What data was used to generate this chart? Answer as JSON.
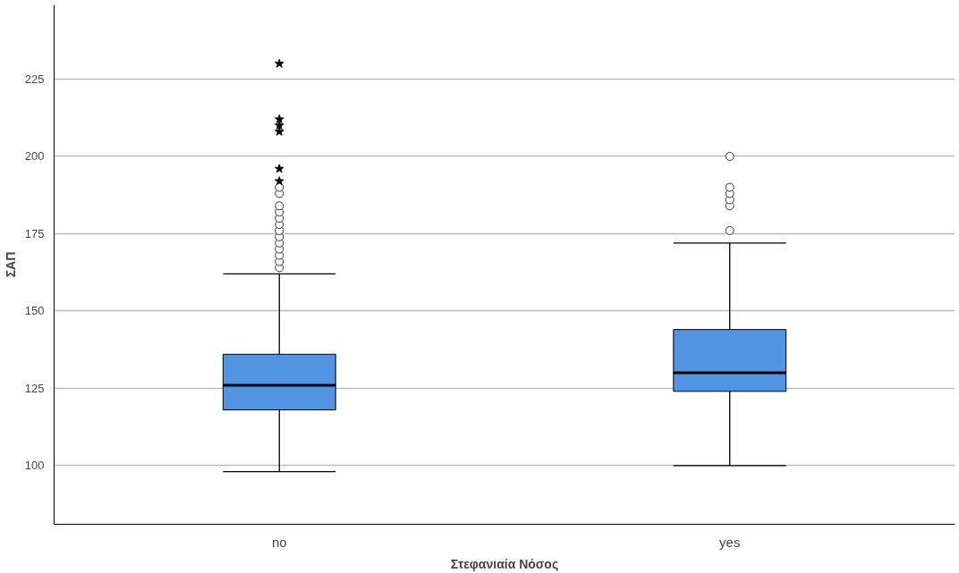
{
  "chart_data": {
    "type": "box",
    "xlabel": "Στεφανιαία Νόσος",
    "ylabel": "ΣΑΠ",
    "categories": [
      "no",
      "yes"
    ],
    "ylim": [
      81,
      249
    ],
    "yticks": [
      100,
      125,
      150,
      175,
      200,
      225
    ],
    "grid": "y",
    "series": [
      {
        "color": "#5294e2",
        "boxes": [
          {
            "low": 98,
            "q1": 118,
            "median": 126,
            "q3": 136,
            "high": 162,
            "outliers": [
              164,
              166,
              168,
              170,
              172,
              174,
              176,
              178,
              180,
              182,
              184,
              188,
              190
            ]
          },
          {
            "low": 100,
            "q1": 124,
            "median": 130,
            "q3": 144,
            "high": 172,
            "outliers": [
              176,
              184,
              186,
              188,
              190,
              200
            ]
          }
        ]
      },
      {
        "type": "scatter",
        "marker": "star",
        "color": "#000000",
        "x": [
          "no",
          "no",
          "no",
          "no",
          "no",
          "no"
        ],
        "values": [
          192,
          196,
          208,
          210,
          212,
          230
        ]
      }
    ]
  }
}
